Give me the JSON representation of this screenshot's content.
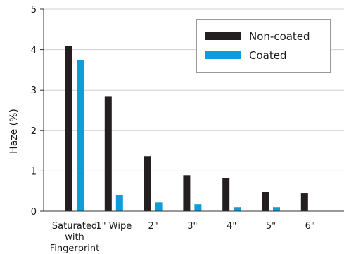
{
  "chart_data": {
    "type": "bar",
    "ylabel": "Haze (%)",
    "ylim": [
      0,
      5
    ],
    "yticks": [
      0,
      1,
      2,
      3,
      4,
      5
    ],
    "grid": true,
    "legend_position": "top-right",
    "categories": [
      [
        "Saturated",
        "with",
        "Fingerprint"
      ],
      [
        "1\" Wipe"
      ],
      [
        "2\""
      ],
      [
        "3\""
      ],
      [
        "4\""
      ],
      [
        "5\""
      ],
      [
        "6\""
      ]
    ],
    "series": [
      {
        "name": "Non-coated",
        "color": "#231f20",
        "values": [
          4.08,
          2.84,
          1.35,
          0.88,
          0.83,
          0.48,
          0.45
        ]
      },
      {
        "name": "Coated",
        "color": "#0d9ddb",
        "values": [
          3.75,
          0.4,
          0.22,
          0.17,
          0.1,
          0.1,
          0.0
        ]
      }
    ]
  }
}
